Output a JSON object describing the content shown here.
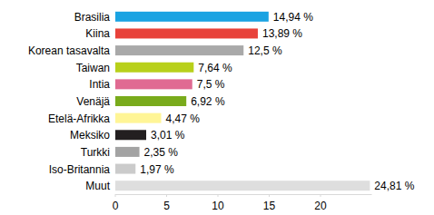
{
  "chart_data": {
    "type": "bar",
    "orientation": "horizontal",
    "categories": [
      "Brasilia",
      "Kiina",
      "Korean tasavalta",
      "Taiwan",
      "Intia",
      "Venäjä",
      "Etelä-Afrikka",
      "Meksiko",
      "Turkki",
      "Iso-Britannia",
      "Muut"
    ],
    "values": [
      14.94,
      13.89,
      12.5,
      7.64,
      7.5,
      6.92,
      4.47,
      3.01,
      2.35,
      1.97,
      24.81
    ],
    "value_labels": [
      "14,94 %",
      "13,89 %",
      "12,5 %",
      "7,64 %",
      "7,5 %",
      "6,92 %",
      "4,47 %",
      "3,01 %",
      "2,35 %",
      "1,97 %",
      "24,81 %"
    ],
    "colors": [
      "#1aa3e2",
      "#e8423a",
      "#a9a9a9",
      "#b8d01a",
      "#e06a92",
      "#79ab1c",
      "#fff596",
      "#231f20",
      "#a3a3a3",
      "#cbcbcb",
      "#dedede"
    ],
    "xlim": [
      0,
      25
    ],
    "xticks": [
      0,
      5,
      10,
      15,
      20
    ],
    "data_labels": true,
    "grid": false
  }
}
